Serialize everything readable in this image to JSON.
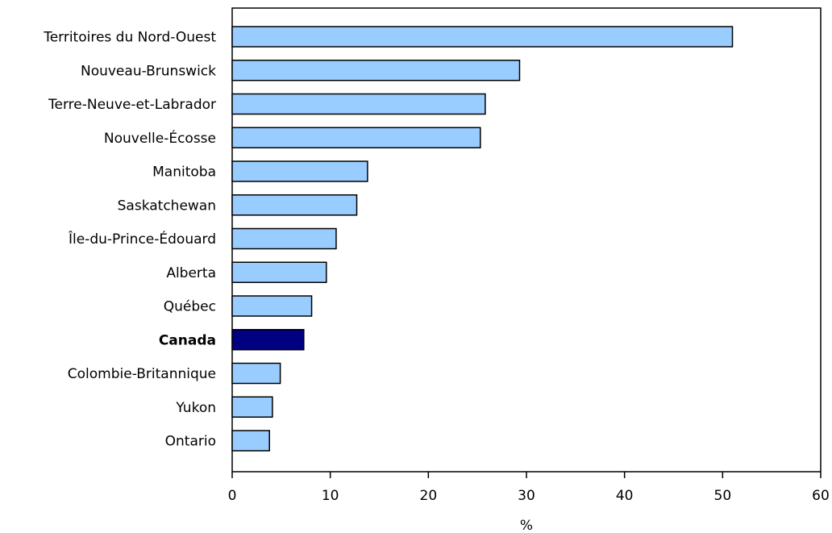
{
  "chart_data": {
    "type": "bar",
    "orientation": "horizontal",
    "categories": [
      "Territoires du Nord-Ouest",
      "Nouveau-Brunswick",
      "Terre-Neuve-et-Labrador",
      "Nouvelle-Écosse",
      "Manitoba",
      "Saskatchewan",
      "Île-du-Prince-Édouard",
      "Alberta",
      "Québec",
      "Canada",
      "Colombie-Britannique",
      "Yukon",
      "Ontario"
    ],
    "values": [
      51.0,
      29.3,
      25.8,
      25.3,
      13.8,
      12.7,
      10.6,
      9.6,
      8.1,
      7.3,
      4.9,
      4.1,
      3.8
    ],
    "highlight_category": "Canada",
    "title": "",
    "xlabel": "%",
    "ylabel": "",
    "xlim": [
      0,
      60
    ],
    "x_ticks": [
      0,
      10,
      20,
      30,
      40,
      50,
      60
    ],
    "grid": false,
    "colors": {
      "bar": "#99ccff",
      "highlight_bar": "#000080",
      "bar_outline": "#000000"
    }
  }
}
